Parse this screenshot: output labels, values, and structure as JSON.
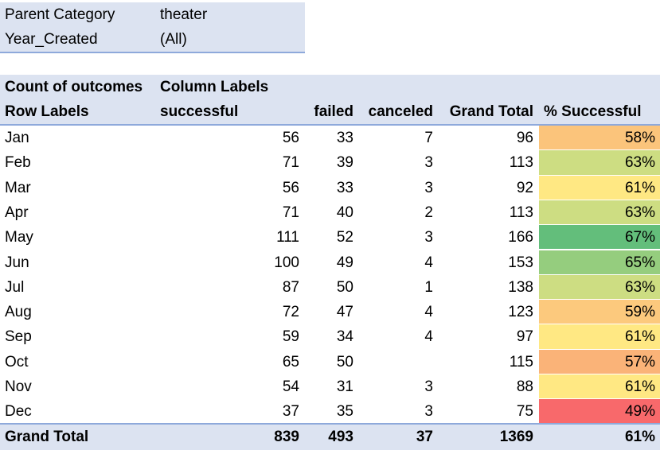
{
  "filters": [
    {
      "label": "Parent Category",
      "value": "theater"
    },
    {
      "label": "Year_Created",
      "value": "(All)"
    }
  ],
  "header": {
    "row1": {
      "corner": "Count of outcomes",
      "column_labels": "Column Labels"
    },
    "row2": {
      "row_labels": "Row Labels",
      "successful": "successful",
      "failed": "failed",
      "canceled": "canceled",
      "grand_total": "Grand Total",
      "pct_successful": "% Successful"
    }
  },
  "rows": [
    {
      "month": "Jan",
      "successful": "56",
      "failed": "33",
      "canceled": "7",
      "grand_total": "96",
      "pct": "58%",
      "color": "#fbc47b"
    },
    {
      "month": "Feb",
      "successful": "71",
      "failed": "39",
      "canceled": "3",
      "grand_total": "113",
      "pct": "63%",
      "color": "#cddd82"
    },
    {
      "month": "Mar",
      "successful": "56",
      "failed": "33",
      "canceled": "3",
      "grand_total": "92",
      "pct": "61%",
      "color": "#ffe883"
    },
    {
      "month": "Apr",
      "successful": "71",
      "failed": "40",
      "canceled": "2",
      "grand_total": "113",
      "pct": "63%",
      "color": "#cddd82"
    },
    {
      "month": "May",
      "successful": "111",
      "failed": "52",
      "canceled": "3",
      "grand_total": "166",
      "pct": "67%",
      "color": "#63be7b"
    },
    {
      "month": "Jun",
      "successful": "100",
      "failed": "49",
      "canceled": "4",
      "grand_total": "153",
      "pct": "65%",
      "color": "#95cd7e"
    },
    {
      "month": "Jul",
      "successful": "87",
      "failed": "50",
      "canceled": "1",
      "grand_total": "138",
      "pct": "63%",
      "color": "#cddd82"
    },
    {
      "month": "Aug",
      "successful": "72",
      "failed": "47",
      "canceled": "4",
      "grand_total": "123",
      "pct": "59%",
      "color": "#fcc97d"
    },
    {
      "month": "Sep",
      "successful": "59",
      "failed": "34",
      "canceled": "4",
      "grand_total": "97",
      "pct": "61%",
      "color": "#ffe883"
    },
    {
      "month": "Oct",
      "successful": "65",
      "failed": "50",
      "canceled": "",
      "grand_total": "115",
      "pct": "57%",
      "color": "#fab378"
    },
    {
      "month": "Nov",
      "successful": "54",
      "failed": "31",
      "canceled": "3",
      "grand_total": "88",
      "pct": "61%",
      "color": "#ffe883"
    },
    {
      "month": "Dec",
      "successful": "37",
      "failed": "35",
      "canceled": "3",
      "grand_total": "75",
      "pct": "49%",
      "color": "#f8696b"
    }
  ],
  "total": {
    "label": "Grand Total",
    "successful": "839",
    "failed": "493",
    "canceled": "37",
    "grand_total": "1369",
    "pct": "61%"
  }
}
